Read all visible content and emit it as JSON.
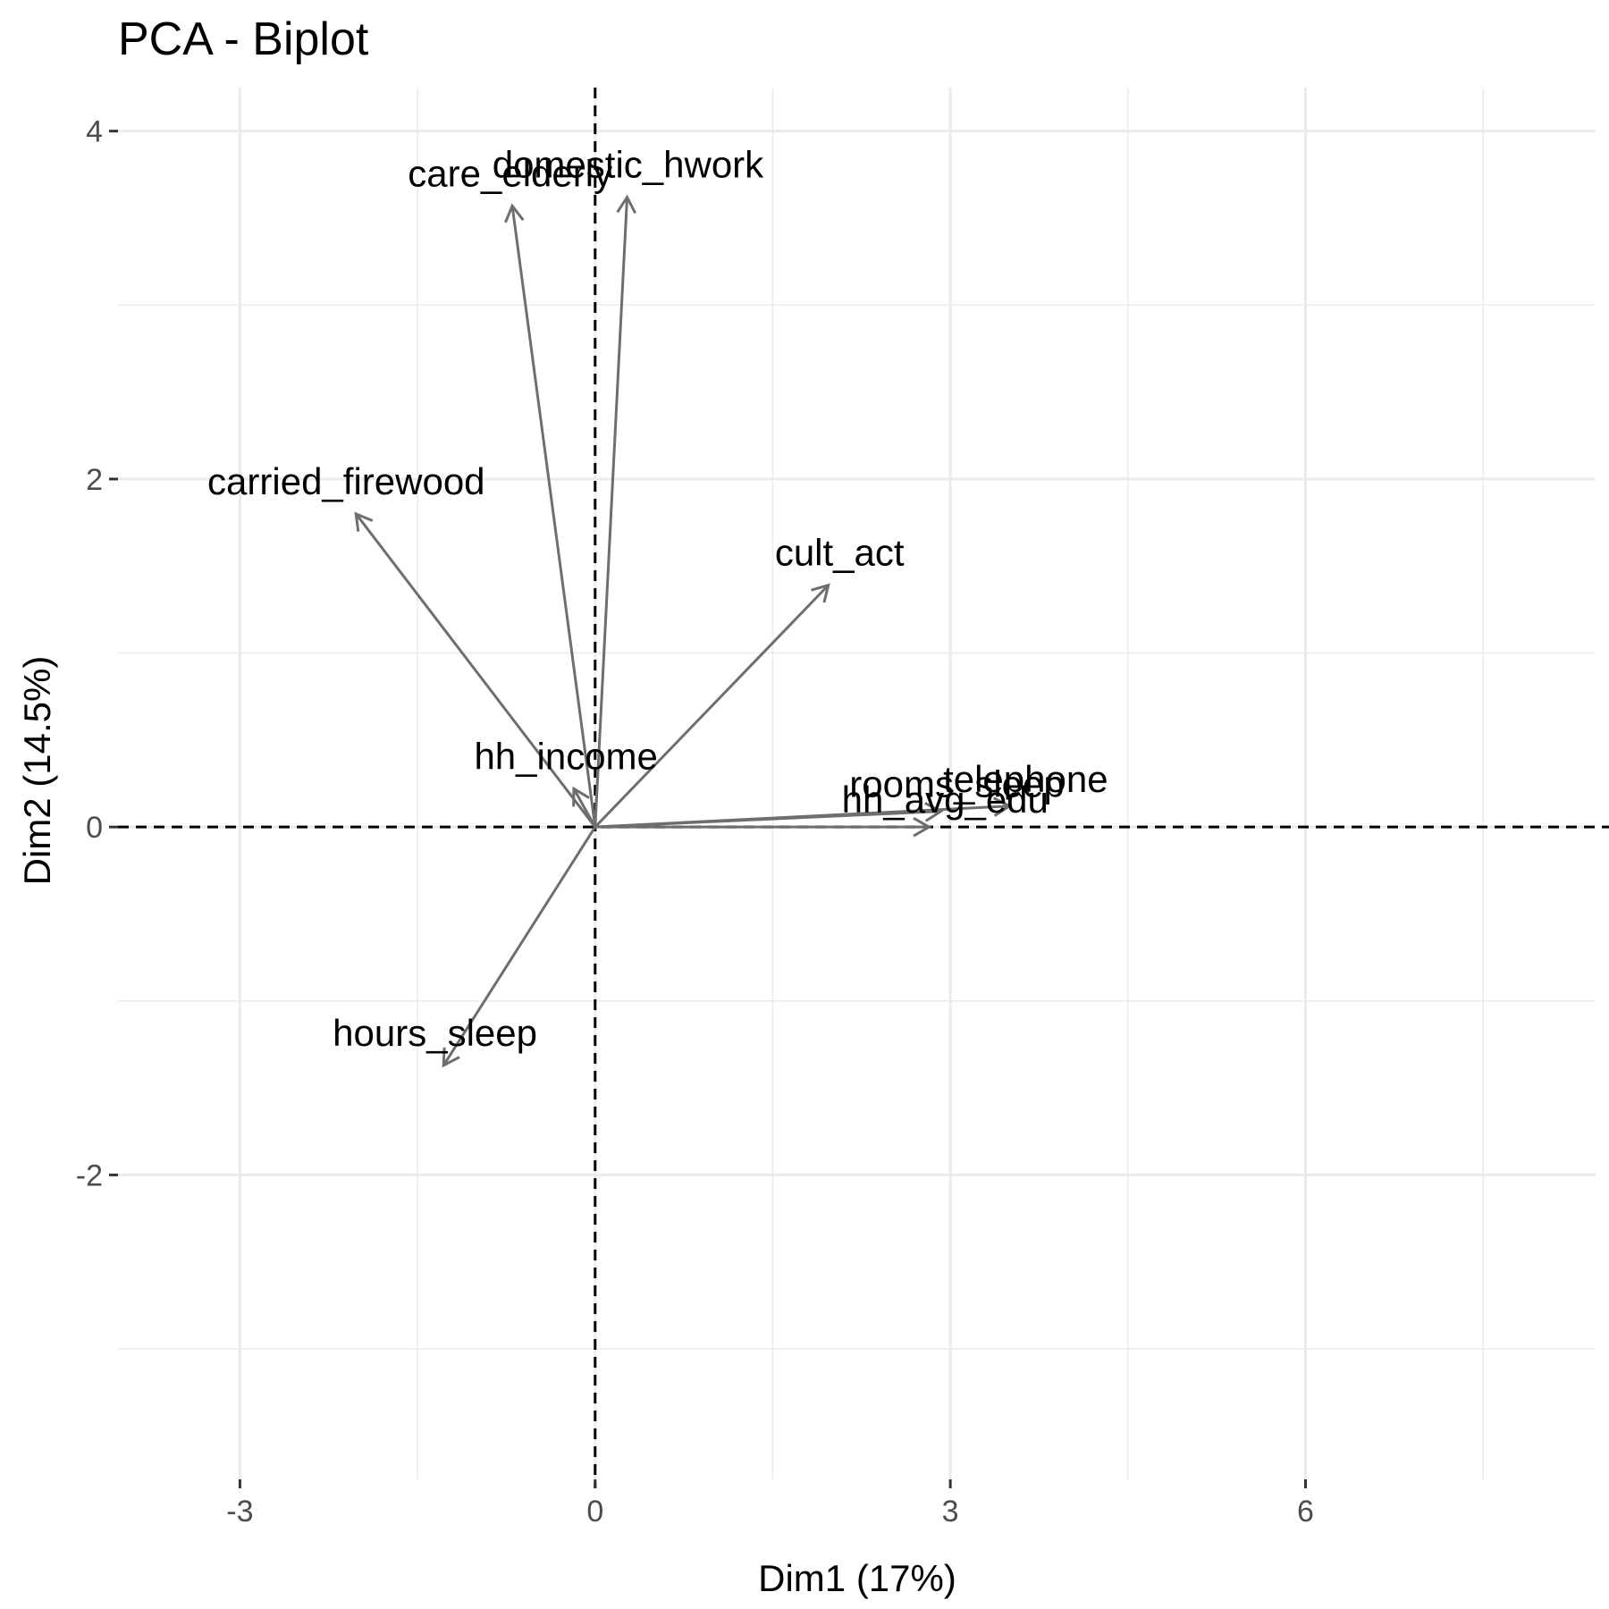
{
  "chart_data": {
    "type": "scatter",
    "subtype": "pca-biplot-variable-arrows",
    "title": "PCA - Biplot",
    "xlabel": "Dim1 (17%)",
    "ylabel": "Dim2 (14.5%)",
    "xlim": [
      -4.03,
      8.45
    ],
    "ylim": [
      -3.75,
      4.25
    ],
    "x_ticks": [
      -3,
      0,
      3,
      6
    ],
    "x_tick_labels": [
      "-3",
      "0",
      "3",
      "6"
    ],
    "y_ticks": [
      -2,
      0,
      2,
      4
    ],
    "y_tick_labels": [
      "-2",
      "0",
      "2",
      "4"
    ],
    "grid": true,
    "reference_lines": {
      "x": 0,
      "y": 0,
      "style": "dashed"
    },
    "arrow_color": "#6e6e6e",
    "variables": [
      {
        "name": "domestic_hwork",
        "x": 0.27,
        "y": 3.62
      },
      {
        "name": "care_elderly",
        "x": -0.7,
        "y": 3.57
      },
      {
        "name": "carried_firewood",
        "x": -2.02,
        "y": 1.8
      },
      {
        "name": "cult_act",
        "x": 1.97,
        "y": 1.39
      },
      {
        "name": "hh_income",
        "x": -0.18,
        "y": 0.22
      },
      {
        "name": "telephone",
        "x": 3.5,
        "y": 0.12
      },
      {
        "name": "rooms_sleep",
        "x": 2.92,
        "y": 0.09
      },
      {
        "name": "hh_avg_edu",
        "x": 2.82,
        "y": 0.0
      },
      {
        "name": "hours_sleep",
        "x": -1.28,
        "y": -1.37
      }
    ]
  }
}
